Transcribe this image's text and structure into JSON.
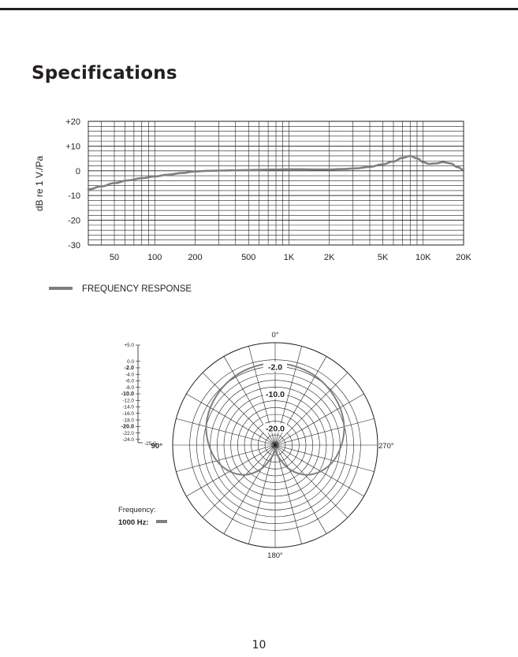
{
  "page": {
    "title": "Specifications",
    "page_number": "10"
  },
  "chart_data": [
    {
      "type": "line",
      "title": "",
      "ylabel": "dB re 1 V./Pa",
      "xlabel": "",
      "x_scale": "log",
      "xlim": [
        32,
        20000
      ],
      "ylim": [
        -30,
        20
      ],
      "x_ticks": [
        {
          "value": 50,
          "label": "50"
        },
        {
          "value": 100,
          "label": "100"
        },
        {
          "value": 200,
          "label": "200"
        },
        {
          "value": 500,
          "label": "500"
        },
        {
          "value": 1000,
          "label": "1K"
        },
        {
          "value": 2000,
          "label": "2K"
        },
        {
          "value": 5000,
          "label": "5K"
        },
        {
          "value": 10000,
          "label": "10K"
        },
        {
          "value": 20000,
          "label": "20K"
        }
      ],
      "y_ticks": [
        {
          "value": 20,
          "label": "+20"
        },
        {
          "value": 10,
          "label": "+10"
        },
        {
          "value": 0,
          "label": "0"
        },
        {
          "value": -10,
          "label": "-10"
        },
        {
          "value": -20,
          "label": "-20"
        },
        {
          "value": -30,
          "label": "-30"
        }
      ],
      "grid": true,
      "color": "#7f7f7f",
      "legend_label": "FREQUENCY RESPONSE",
      "legend_position": "bottom-left",
      "series": [
        {
          "name": "FREQUENCY RESPONSE",
          "x": [
            32,
            40,
            50,
            63,
            80,
            100,
            125,
            160,
            200,
            250,
            315,
            400,
            500,
            630,
            800,
            1000,
            1250,
            1600,
            2000,
            2500,
            3150,
            4000,
            5000,
            6000,
            7000,
            8000,
            9000,
            10000,
            11000,
            12500,
            14000,
            16000,
            18000,
            20000
          ],
          "y": [
            -7.5,
            -6.3,
            -5.0,
            -3.9,
            -3.0,
            -2.3,
            -1.6,
            -0.9,
            -0.3,
            0.0,
            0.1,
            0.2,
            0.3,
            0.4,
            0.5,
            0.6,
            0.6,
            0.5,
            0.5,
            0.7,
            1.0,
            1.6,
            2.6,
            3.8,
            5.2,
            6.0,
            5.0,
            3.5,
            2.8,
            3.0,
            3.5,
            3.0,
            1.5,
            0.4
          ]
        }
      ]
    },
    {
      "type": "polar",
      "title": "",
      "angle_labels": [
        "0°",
        "90°",
        "180°",
        "270°"
      ],
      "ring_labels": [
        "-2.0",
        "-10.0",
        "-20.0"
      ],
      "rlim": [
        -25,
        5
      ],
      "scale_labels": [
        "+5.0",
        "0.0",
        "-2.0",
        "-4.0",
        "-6.0",
        "-8.0",
        "-10.0",
        "-12.0",
        "-14.0",
        "-16.0",
        "-18.0",
        "-20.0",
        "-22.0",
        "-24.0",
        "-25.0"
      ],
      "scale_bold": [
        "-2.0",
        "-10.0",
        "-20.0"
      ],
      "legend_title": "Frequency:",
      "color": "#7f7f7f",
      "series": [
        {
          "name": "1000 Hz:",
          "pattern": "cardioid",
          "angles_deg": [
            0,
            15,
            30,
            45,
            60,
            75,
            90,
            105,
            120,
            135,
            150,
            165,
            180
          ],
          "db": [
            -1.0,
            -1.2,
            -1.6,
            -2.3,
            -3.1,
            -4.1,
            -5.6,
            -7.3,
            -9.6,
            -12.7,
            -17.0,
            -21.5,
            -24.0
          ]
        }
      ]
    }
  ]
}
